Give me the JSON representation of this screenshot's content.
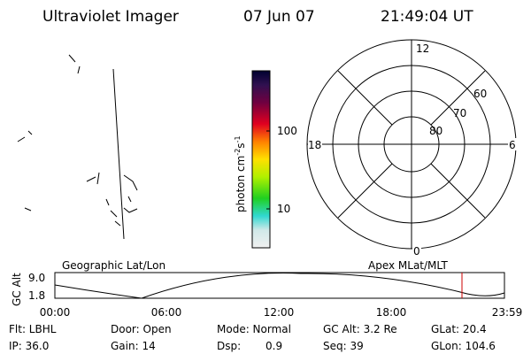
{
  "header": {
    "title": "Ultraviolet Imager",
    "date": "07 Jun 07",
    "time": "21:49:04 UT"
  },
  "colorbar": {
    "label": "photon cm",
    "exp1": "-2",
    "unit2": "s",
    "exp2": "-1",
    "ticks": [
      "100",
      "10"
    ]
  },
  "polar": {
    "hour_labels": [
      "12",
      "18",
      "6",
      "0"
    ],
    "lat_labels": [
      "60",
      "70",
      "80"
    ]
  },
  "orbit": {
    "left_title": "Geographic Lat/Lon",
    "right_title": "Apex MLat/MLT",
    "axis_label": "GC Alt",
    "yticks": [
      "9.0",
      "1.8"
    ],
    "xticks": [
      "00:00",
      "06:00",
      "12:00",
      "18:00",
      "23:59"
    ]
  },
  "footer": {
    "flt": "Flt: LBHL",
    "ip": "IP: 36.0",
    "door": "Door: Open",
    "gain": "Gain: 14",
    "mode": "Mode: Normal",
    "dsp": "Dsp:",
    "dsp_value": "0.9",
    "gc_alt": "GC Alt: 3.2 Re",
    "seq": "Seq: 39",
    "glat": "GLat: 20.4",
    "glon": "GLon: 104.6"
  }
}
